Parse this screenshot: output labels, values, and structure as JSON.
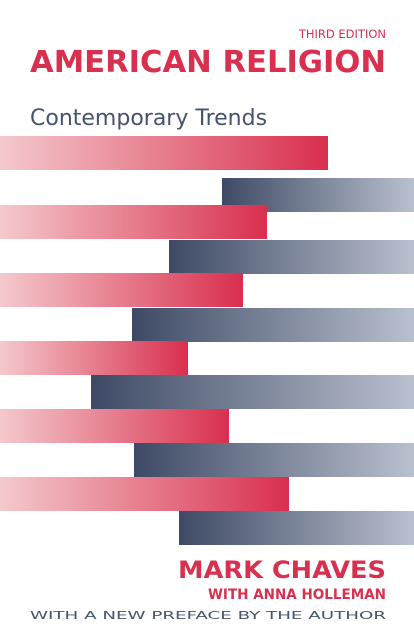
{
  "cover": {
    "edition": "THIRD EDITION",
    "title": "AMERICAN RELIGION",
    "subtitle": "Contemporary Trends",
    "author": "MARK CHAVES",
    "coauthor": "WITH ANNA HOLLEMAN",
    "note": "WITH A NEW PREFACE BY THE AUTHOR"
  }
}
